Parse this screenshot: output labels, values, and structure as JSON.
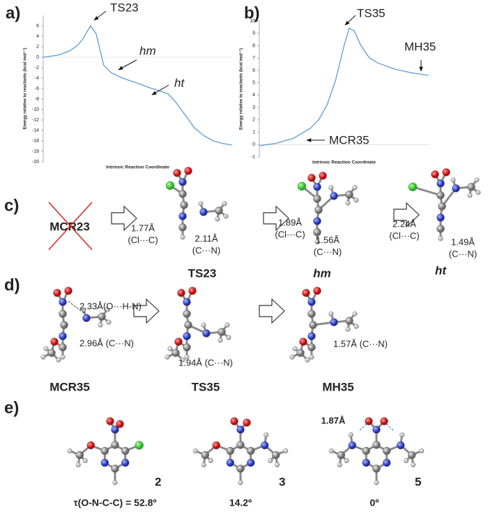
{
  "chart_data": [
    {
      "type": "line",
      "panel": "a)",
      "y_label": "Energy relative to reactants (kcal mol⁻¹)",
      "x_label": "Intrinsic Reaction Coordinate",
      "x": [
        0,
        8,
        14,
        18,
        21,
        25,
        28,
        32,
        36,
        42,
        50,
        56,
        62,
        66,
        70,
        75,
        80,
        85,
        90,
        95,
        100
      ],
      "series": [
        {
          "color": "#5b9bd5",
          "values": [
            0,
            0.4,
            1.2,
            2.2,
            3.5,
            6,
            4.5,
            -1.5,
            -3,
            -4,
            -5,
            -5.8,
            -6.5,
            -7,
            -8.5,
            -11,
            -13.5,
            -15,
            -16,
            -16.5,
            -16.8
          ]
        }
      ],
      "xlim": [
        0,
        100
      ],
      "ylim": [
        -20,
        8
      ],
      "yticks": [
        -20,
        -18,
        -16,
        -14,
        -12,
        -10,
        -8,
        -6,
        -4,
        -2,
        0,
        2,
        4,
        6
      ],
      "annotations": [
        {
          "text": "TS23",
          "italic": false
        },
        {
          "text": "hm",
          "italic": true
        },
        {
          "text": "ht",
          "italic": true
        }
      ]
    },
    {
      "type": "line",
      "panel": "b)",
      "y_label": "Energy relative to reactants (kcal mol⁻¹)",
      "x_label": "Intrinsic Reaction Coordinate",
      "x": [
        0,
        10,
        20,
        30,
        35,
        40,
        45,
        50,
        53,
        56,
        60,
        65,
        70,
        80,
        90,
        100
      ],
      "series": [
        {
          "color": "#5b9bd5",
          "values": [
            -0.1,
            0.1,
            0.5,
            1.3,
            2,
            3.2,
            5.2,
            8,
            9.4,
            9.2,
            8,
            7,
            6.6,
            6.1,
            5.8,
            5.6
          ]
        }
      ],
      "xlim": [
        0,
        100
      ],
      "ylim": [
        -1,
        10
      ],
      "yticks": [
        -1,
        0,
        1,
        2,
        3,
        4,
        5,
        6,
        7,
        8,
        9,
        10
      ],
      "annotations": [
        {
          "text": "TS35",
          "italic": false
        },
        {
          "text": "MH35",
          "italic": false
        },
        {
          "text": "MCR35",
          "italic": false
        }
      ]
    }
  ],
  "panel_c": {
    "label": "c)",
    "crossed": "MCR23",
    "names": [
      "TS23",
      "hm",
      "ht"
    ],
    "distances": [
      [
        "1.77Å",
        "(Cl···C)"
      ],
      [
        "2.11Å",
        "(C···N)"
      ],
      [
        "1.89Å",
        "(Cl···C)"
      ],
      [
        "1.56Å",
        "(C···N)"
      ],
      [
        "2.24Å",
        "(Cl···C)"
      ],
      [
        "1.49Å",
        "(C···N)"
      ]
    ]
  },
  "panel_d": {
    "label": "d)",
    "names": [
      "MCR35",
      "TS35",
      "MH35"
    ],
    "distances": [
      "2.33Å(O···H-N)",
      "2.96Å (C···N)",
      "1.94Å (C···N)",
      "1.57Å (C···N)"
    ]
  },
  "panel_e": {
    "label": "e)",
    "compounds": [
      "2",
      "3",
      "5"
    ],
    "torsions": [
      "τ(O-N-C-C) = 52.8º",
      "14.2º",
      "0º"
    ],
    "hbond": "1.87Å"
  }
}
